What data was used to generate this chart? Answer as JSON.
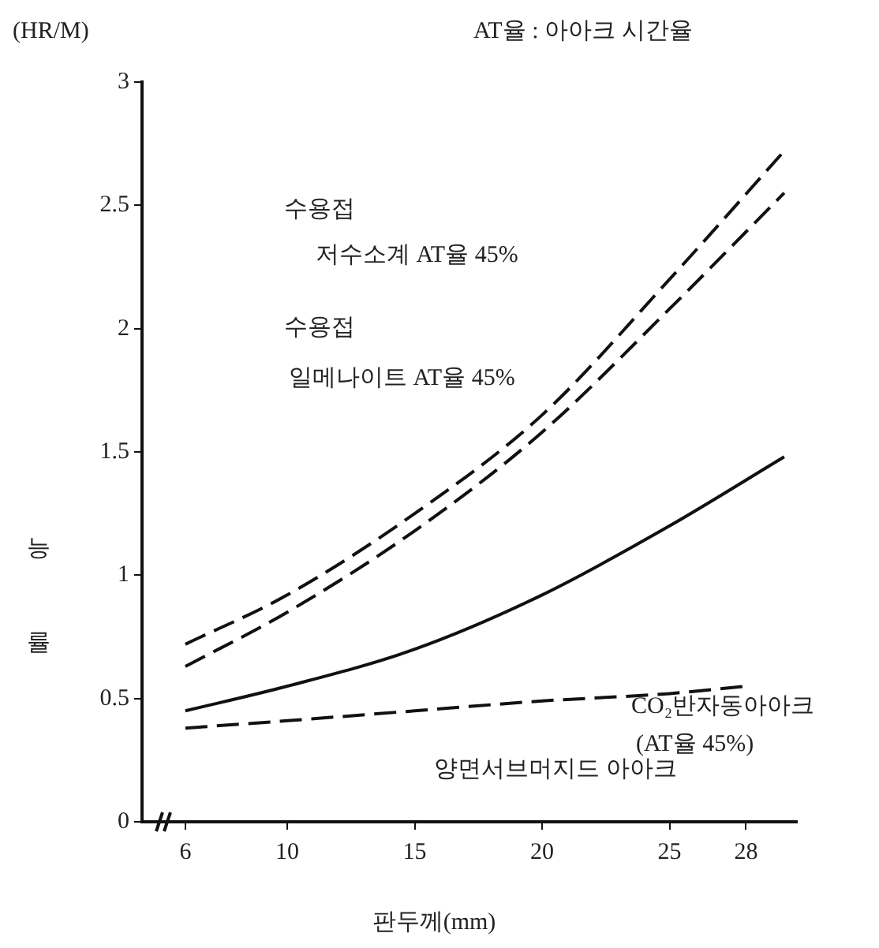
{
  "chart_data": {
    "type": "line",
    "xlabel": "판두께(mm)",
    "ylabel": "능률",
    "x": [
      6,
      10,
      15,
      20,
      25,
      29.5
    ],
    "series": [
      {
        "color": "#111111",
        "values": [
          0.72,
          0.92,
          1.25,
          1.65,
          2.2,
          2.72
        ],
        "line_style": "dashed"
      },
      {
        "color": "#111111",
        "values": [
          0.63,
          0.85,
          1.18,
          1.58,
          2.08,
          2.55
        ],
        "line_style": "dashed"
      },
      {
        "color": "#111111",
        "values": [
          0.45,
          0.55,
          0.7,
          0.92,
          1.2,
          1.48
        ],
        "line_style": "solid"
      },
      {
        "color": "#111111",
        "x": [
          6,
          10,
          15,
          20,
          25,
          28
        ],
        "values": [
          0.38,
          0.41,
          0.45,
          0.49,
          0.52,
          0.55
        ],
        "line_style": "dashed"
      }
    ],
    "xlim": [
      4.3,
      30
    ],
    "xticks": [
      6,
      10,
      15,
      20,
      25,
      28
    ],
    "ylim": [
      0,
      3
    ],
    "yticks": [
      0,
      0.5,
      1,
      1.5,
      2,
      2.5,
      3
    ],
    "grid": false,
    "legend": false,
    "marker": "none",
    "annotations": [
      "(HR/M)",
      "AT율 : 아아크 시간율",
      "수용접",
      "저수소계 AT율 45%",
      "수용접",
      "일메나이트 AT율 45%",
      "CO₂반자동아아크",
      "(AT율 45%)",
      "양면서브머지드 아아크"
    ]
  }
}
